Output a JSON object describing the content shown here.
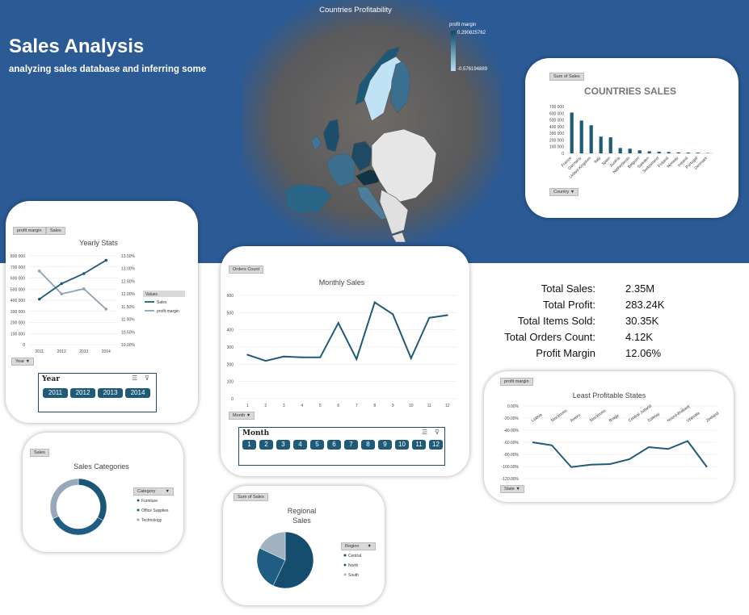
{
  "header": {
    "title": "Sales Analysis",
    "subtitle": "analyzing sales database and inferring some"
  },
  "map": {
    "title": "Countries Profitability",
    "legend_title": "profit margin",
    "legend_max": "0.290825762",
    "legend_min": "-0.576194889"
  },
  "countries_sales": {
    "tag": "Sum of Sales",
    "filter": "Country",
    "chart_data": {
      "type": "bar",
      "title": "COUNTRIES SALES",
      "categories": [
        "France",
        "Germany",
        "United Kingdom",
        "Italy",
        "Spain",
        "Austria",
        "Netherlands",
        "Belgium",
        "Sweden",
        "Switzerland",
        "Finland",
        "Norway",
        "Ireland",
        "Portugal",
        "Denmark"
      ],
      "values": [
        610000,
        490000,
        420000,
        250000,
        240000,
        80000,
        70000,
        45000,
        30000,
        25000,
        20000,
        15000,
        12000,
        10000,
        5000
      ],
      "yticks": [
        "700 000",
        "600 000",
        "500 000",
        "400 000",
        "300 000",
        "200 000",
        "100 000",
        "0"
      ],
      "ylim": [
        0,
        700000
      ]
    }
  },
  "yearly_stats": {
    "tags": [
      "profit margin",
      "Sales"
    ],
    "filter": "Year",
    "legend_title": "Values",
    "chart_data": {
      "type": "line",
      "title": "Yearly Stats",
      "categories": [
        "2011",
        "2012",
        "2013",
        "2014"
      ],
      "series": [
        {
          "name": "Sales",
          "values": [
            410000,
            550000,
            640000,
            760000
          ],
          "color": "#1f5a78"
        },
        {
          "name": "profit margin",
          "values": [
            12.9,
            12.0,
            12.2,
            11.4
          ],
          "color": "#8fa3b5"
        }
      ],
      "y_left_ticks": [
        "800 000",
        "700 000",
        "600 000",
        "500 000",
        "400 000",
        "300 000",
        "200 000",
        "100 000",
        "0"
      ],
      "y_right_ticks": [
        "13.50%",
        "13.00%",
        "12.50%",
        "12.00%",
        "11.50%",
        "11.00%",
        "10.50%",
        "10.00%"
      ],
      "ylim_left": [
        0,
        800000
      ],
      "ylim_right": [
        10.0,
        13.5
      ]
    },
    "slicer": {
      "header": "Year",
      "items": [
        "2011",
        "2012",
        "2013",
        "2014"
      ]
    }
  },
  "monthly_sales": {
    "tag": "Orders Count",
    "filter": "Month",
    "chart_data": {
      "type": "line",
      "title": "Monthly Sales",
      "categories": [
        "1",
        "2",
        "3",
        "4",
        "5",
        "6",
        "7",
        "8",
        "9",
        "10",
        "11",
        "12"
      ],
      "values": [
        255,
        220,
        245,
        240,
        240,
        440,
        230,
        560,
        490,
        235,
        470,
        485
      ],
      "yticks": [
        "600",
        "500",
        "400",
        "300",
        "200",
        "100",
        "0"
      ],
      "ylim": [
        0,
        600
      ]
    },
    "slicer": {
      "header": "Month",
      "items": [
        "1",
        "2",
        "3",
        "4",
        "5",
        "6",
        "7",
        "8",
        "9",
        "10",
        "11",
        "12"
      ]
    }
  },
  "kpis": [
    {
      "label": "Total Sales:",
      "value": "2.35M"
    },
    {
      "label": "Total Profit:",
      "value": "283.24K"
    },
    {
      "label": "Total Items Sold:",
      "value": "30.35K"
    },
    {
      "label": "Total Orders Count:",
      "value": "4.12K"
    },
    {
      "label": "Profit Margin",
      "value": "12.06%"
    }
  ],
  "least_profitable": {
    "tag": "profit margin",
    "filter": "State",
    "chart_data": {
      "type": "line",
      "title": "Least Profitable States",
      "categories": [
        "Lisboa",
        "Stockholm",
        "Aveiro",
        "Stockholm",
        "Braga",
        "Central Jutland",
        "Galway",
        "Noord-Brabant",
        "Uppsala",
        "Zeeland"
      ],
      "values": [
        -60,
        -65,
        -101,
        -97,
        -96,
        -88,
        -68,
        -71,
        -58,
        -101
      ],
      "yticks": [
        "0.00%",
        "-20.00%",
        "-40.00%",
        "-60.00%",
        "-80.00%",
        "-100.00%",
        "-120.00%"
      ],
      "ylim": [
        -120,
        0
      ]
    }
  },
  "sales_categories": {
    "tag": "Sales",
    "filter": "Category",
    "chart_data": {
      "type": "pie",
      "title": "Sales Categories",
      "categories": [
        "Furniture",
        "Office Supplies",
        "Technology"
      ],
      "values": [
        0.33,
        0.35,
        0.32
      ],
      "colors": [
        "#1a5676",
        "#1f5e82",
        "#98a8b9"
      ]
    }
  },
  "regional_sales": {
    "tag": "Sum of Sales",
    "filter": "Region",
    "chart_data": {
      "type": "pie",
      "title": "Regional Sales",
      "categories": [
        "Central",
        "North",
        "South"
      ],
      "values": [
        0.57,
        0.25,
        0.18
      ],
      "colors": [
        "#154d6e",
        "#1f5e82",
        "#a2b1bf"
      ]
    }
  }
}
